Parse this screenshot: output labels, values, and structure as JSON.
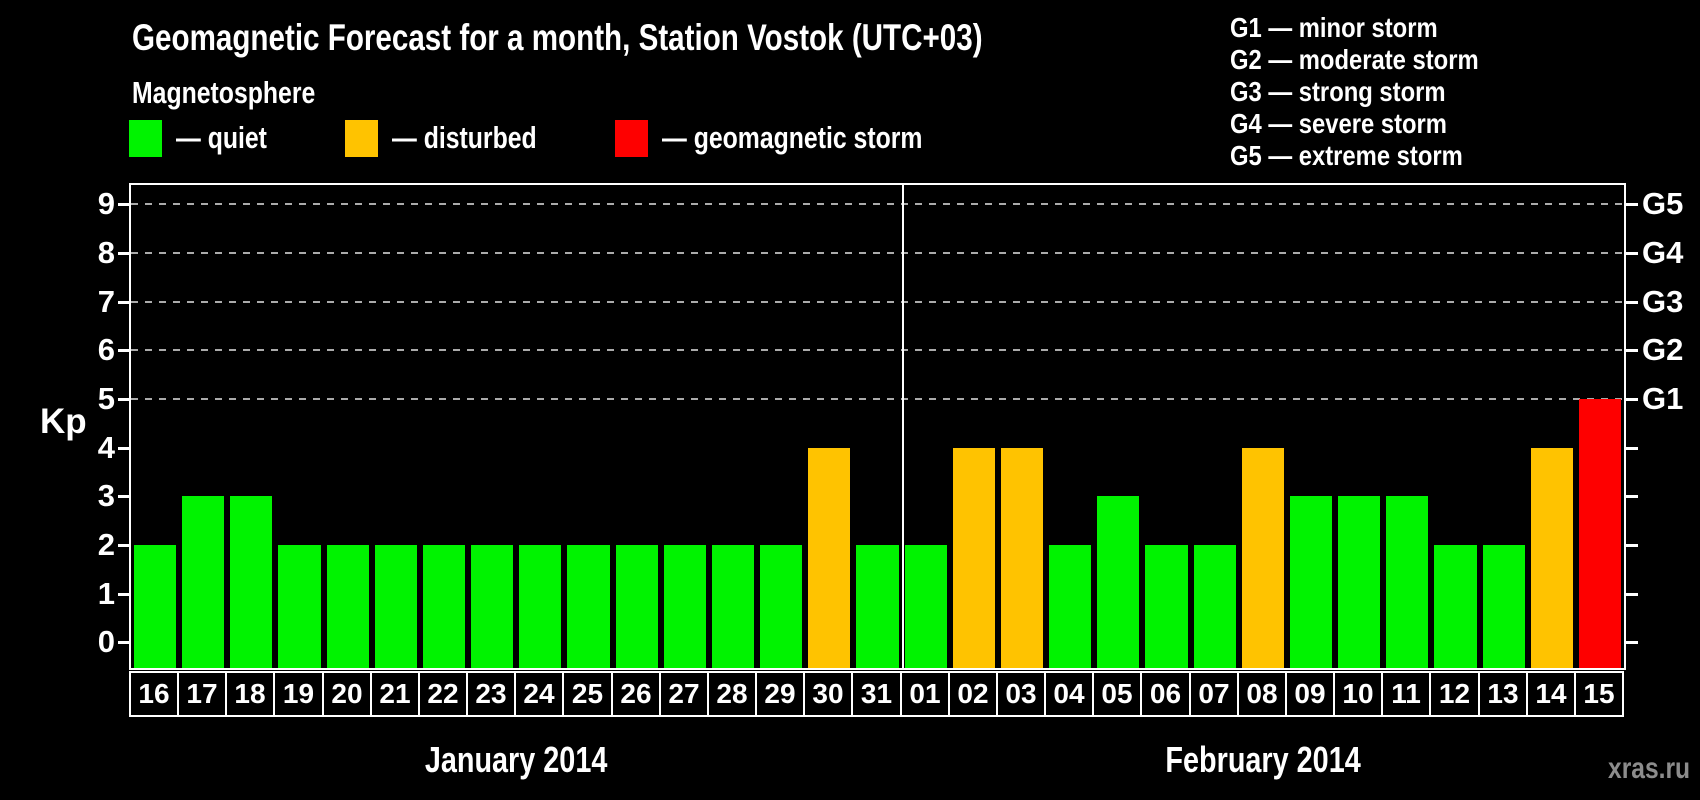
{
  "header": {
    "title": "Geomagnetic Forecast for a month, Station Vostok (UTC+03)",
    "subtitle": "Magnetosphere"
  },
  "legend": [
    {
      "key": "quiet",
      "label": "— quiet",
      "color": "#00f300",
      "x": 129
    },
    {
      "key": "disturbed",
      "label": "— disturbed",
      "color": "#ffc300",
      "x": 345
    },
    {
      "key": "storm",
      "label": "— geomagnetic storm",
      "color": "#fe0000",
      "x": 615
    }
  ],
  "g_legend": [
    "G1 — minor storm",
    "G2 — moderate storm",
    "G3 — strong storm",
    "G4 — severe storm",
    "G5 — extreme storm"
  ],
  "watermark": "xras.ru",
  "chart_data": {
    "type": "bar",
    "ylabel": "Kp",
    "ylim": [
      -0.53,
      9.4
    ],
    "yticks": [
      0,
      1,
      2,
      3,
      4,
      5,
      6,
      7,
      8,
      9
    ],
    "gridline_levels": [
      5,
      6,
      7,
      8,
      9
    ],
    "right_axis_labels": [
      {
        "kp": 5,
        "label": "G1"
      },
      {
        "kp": 6,
        "label": "G2"
      },
      {
        "kp": 7,
        "label": "G3"
      },
      {
        "kp": 8,
        "label": "G4"
      },
      {
        "kp": 9,
        "label": "G5"
      }
    ],
    "status_colors": {
      "quiet": "#00f300",
      "disturbed": "#ffc300",
      "storm": "#fe0000"
    },
    "months": [
      {
        "label": "January 2014",
        "days": [
          {
            "day": "16",
            "kp": 2,
            "status": "quiet"
          },
          {
            "day": "17",
            "kp": 3,
            "status": "quiet"
          },
          {
            "day": "18",
            "kp": 3,
            "status": "quiet"
          },
          {
            "day": "19",
            "kp": 2,
            "status": "quiet"
          },
          {
            "day": "20",
            "kp": 2,
            "status": "quiet"
          },
          {
            "day": "21",
            "kp": 2,
            "status": "quiet"
          },
          {
            "day": "22",
            "kp": 2,
            "status": "quiet"
          },
          {
            "day": "23",
            "kp": 2,
            "status": "quiet"
          },
          {
            "day": "24",
            "kp": 2,
            "status": "quiet"
          },
          {
            "day": "25",
            "kp": 2,
            "status": "quiet"
          },
          {
            "day": "26",
            "kp": 2,
            "status": "quiet"
          },
          {
            "day": "27",
            "kp": 2,
            "status": "quiet"
          },
          {
            "day": "28",
            "kp": 2,
            "status": "quiet"
          },
          {
            "day": "29",
            "kp": 2,
            "status": "quiet"
          },
          {
            "day": "30",
            "kp": 4,
            "status": "disturbed"
          },
          {
            "day": "31",
            "kp": 2,
            "status": "quiet"
          }
        ]
      },
      {
        "label": "February 2014",
        "days": [
          {
            "day": "01",
            "kp": 2,
            "status": "quiet"
          },
          {
            "day": "02",
            "kp": 4,
            "status": "disturbed"
          },
          {
            "day": "03",
            "kp": 4,
            "status": "disturbed"
          },
          {
            "day": "04",
            "kp": 2,
            "status": "quiet"
          },
          {
            "day": "05",
            "kp": 3,
            "status": "quiet"
          },
          {
            "day": "06",
            "kp": 2,
            "status": "quiet"
          },
          {
            "day": "07",
            "kp": 2,
            "status": "quiet"
          },
          {
            "day": "08",
            "kp": 4,
            "status": "disturbed"
          },
          {
            "day": "09",
            "kp": 3,
            "status": "quiet"
          },
          {
            "day": "10",
            "kp": 3,
            "status": "quiet"
          },
          {
            "day": "11",
            "kp": 3,
            "status": "quiet"
          },
          {
            "day": "12",
            "kp": 2,
            "status": "quiet"
          },
          {
            "day": "13",
            "kp": 2,
            "status": "quiet"
          },
          {
            "day": "14",
            "kp": 4,
            "status": "disturbed"
          },
          {
            "day": "15",
            "kp": 5,
            "status": "storm"
          }
        ]
      }
    ]
  }
}
